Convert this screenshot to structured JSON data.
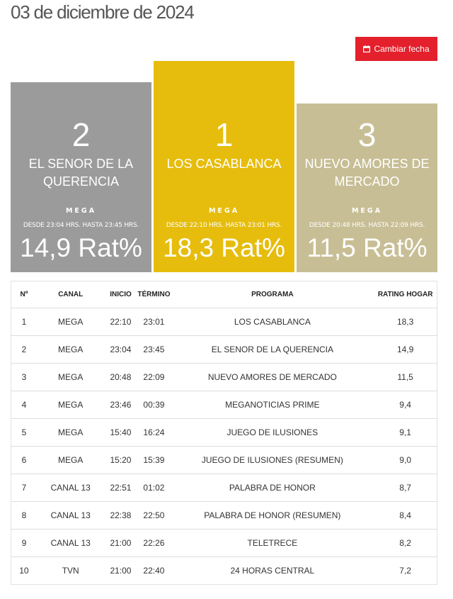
{
  "header": {
    "date_title": "03 de diciembre de 2024",
    "change_date_label": "Cambiar fecha"
  },
  "colors": {
    "first": "#e6bd0d",
    "second": "#9b9b9b",
    "third": "#c8be95",
    "button": "#e3202b"
  },
  "podium": {
    "second": {
      "rank": "2",
      "title": "EL SENOR DE LA QUERENCIA",
      "channel": "MEGA",
      "time": "DESDE 23:04 HRS. HASTA 23:45 HRS.",
      "rating": "14,9 Rat%"
    },
    "first": {
      "rank": "1",
      "title": "LOS CASABLANCA",
      "channel": "MEGA",
      "time": "DESDE 22:10 HRS. HASTA 23:01 HRS.",
      "rating": "18,3 Rat%"
    },
    "third": {
      "rank": "3",
      "title": "NUEVO AMORES DE MERCADO",
      "channel": "MEGA",
      "time": "DESDE 20:48 HRS. HASTA 22:09 HRS.",
      "rating": "11,5 Rat%"
    }
  },
  "table": {
    "headers": {
      "num": "Nº",
      "channel": "CANAL",
      "start": "INICIO",
      "end": "TÉRMINO",
      "program": "PROGRAMA",
      "rating": "RATING HOGAR"
    },
    "rows": [
      {
        "num": "1",
        "channel": "MEGA",
        "start": "22:10",
        "end": "23:01",
        "program": "LOS CASABLANCA",
        "rating": "18,3"
      },
      {
        "num": "2",
        "channel": "MEGA",
        "start": "23:04",
        "end": "23:45",
        "program": "EL SENOR DE LA QUERENCIA",
        "rating": "14,9"
      },
      {
        "num": "3",
        "channel": "MEGA",
        "start": "20:48",
        "end": "22:09",
        "program": "NUEVO AMORES DE MERCADO",
        "rating": "11,5"
      },
      {
        "num": "4",
        "channel": "MEGA",
        "start": "23:46",
        "end": "00:39",
        "program": "MEGANOTICIAS PRIME",
        "rating": "9,4"
      },
      {
        "num": "5",
        "channel": "MEGA",
        "start": "15:40",
        "end": "16:24",
        "program": "JUEGO DE ILUSIONES",
        "rating": "9,1"
      },
      {
        "num": "6",
        "channel": "MEGA",
        "start": "15:20",
        "end": "15:39",
        "program": "JUEGO DE ILUSIONES (RESUMEN)",
        "rating": "9,0"
      },
      {
        "num": "7",
        "channel": "CANAL 13",
        "start": "22:51",
        "end": "01:02",
        "program": "PALABRA DE HONOR",
        "rating": "8,7"
      },
      {
        "num": "8",
        "channel": "CANAL 13",
        "start": "22:38",
        "end": "22:50",
        "program": "PALABRA DE HONOR (RESUMEN)",
        "rating": "8,4"
      },
      {
        "num": "9",
        "channel": "CANAL 13",
        "start": "21:00",
        "end": "22:26",
        "program": "TELETRECE",
        "rating": "8,2"
      },
      {
        "num": "10",
        "channel": "TVN",
        "start": "21:00",
        "end": "22:40",
        "program": "24 HORAS CENTRAL",
        "rating": "7,2"
      }
    ]
  }
}
